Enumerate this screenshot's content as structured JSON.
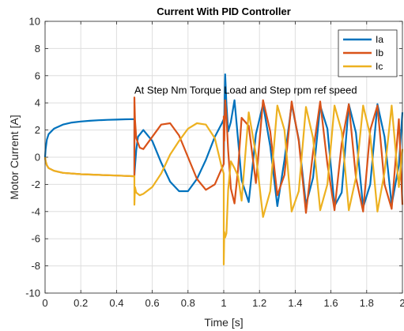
{
  "chart_data": {
    "type": "line",
    "title": "Current With PID Controller",
    "xlabel": "Time [s]",
    "ylabel": "Motor Current [A]",
    "xlim": [
      0,
      2
    ],
    "ylim": [
      -10,
      10
    ],
    "xticks": [
      0,
      0.2,
      0.4,
      0.6,
      0.8,
      1,
      1.2,
      1.4,
      1.6,
      1.8,
      2
    ],
    "xtick_labels": [
      "0",
      "0.2",
      "0.4",
      "0.6",
      "0.8",
      "1",
      "1.2",
      "1.4",
      "1.6",
      "1.8",
      "2"
    ],
    "yticks": [
      -10,
      -8,
      -6,
      -4,
      -2,
      0,
      2,
      4,
      6,
      8,
      10
    ],
    "ytick_labels": [
      "-10",
      "-8",
      "-6",
      "-4",
      "-2",
      "0",
      "2",
      "4",
      "6",
      "8",
      "10"
    ],
    "grid": true,
    "legend_position": "top-right",
    "annotations": [
      {
        "text": "At  Step  Nm Torque Load and Step rpm ref speed",
        "x": 1.0,
        "y": 4.9
      }
    ],
    "series": [
      {
        "name": "Ia",
        "color": "#0072BD",
        "x": [
          0,
          0.003,
          0.01,
          0.02,
          0.05,
          0.1,
          0.15,
          0.2,
          0.25,
          0.3,
          0.35,
          0.4,
          0.45,
          0.5,
          0.5,
          0.505,
          0.51,
          0.52,
          0.55,
          0.6,
          0.65,
          0.7,
          0.75,
          0.8,
          0.85,
          0.9,
          0.95,
          0.99,
          1.0,
          1.0,
          1.003,
          1.008,
          1.015,
          1.025,
          1.04,
          1.06,
          1.08,
          1.1,
          1.14,
          1.18,
          1.22,
          1.26,
          1.3,
          1.34,
          1.38,
          1.42,
          1.46,
          1.5,
          1.54,
          1.58,
          1.62,
          1.66,
          1.7,
          1.74,
          1.78,
          1.82,
          1.86,
          1.9,
          1.94,
          1.98,
          2.0
        ],
        "y": [
          0,
          0.6,
          1.3,
          1.7,
          2.1,
          2.4,
          2.55,
          2.63,
          2.68,
          2.72,
          2.75,
          2.77,
          2.79,
          2.8,
          -1.3,
          -0.4,
          0.5,
          1.5,
          2.0,
          1.2,
          -0.4,
          -1.8,
          -2.5,
          -2.5,
          -1.6,
          -0.2,
          1.5,
          2.5,
          2.8,
          -0.5,
          3.0,
          6.1,
          3.9,
          1.9,
          2.6,
          4.2,
          1.3,
          -1.7,
          -3.3,
          1.7,
          3.9,
          0.8,
          -3.6,
          -0.2,
          3.9,
          1.3,
          -3.5,
          -1.5,
          3.8,
          2.1,
          -3.6,
          -2.6,
          3.9,
          1.8,
          -3.7,
          -2.0,
          3.9,
          1.5,
          -3.5,
          -0.6,
          3.3
        ]
      },
      {
        "name": "Ib",
        "color": "#D95319",
        "x": [
          0,
          0.003,
          0.01,
          0.02,
          0.05,
          0.1,
          0.2,
          0.3,
          0.4,
          0.5,
          0.5,
          0.503,
          0.51,
          0.53,
          0.55,
          0.6,
          0.65,
          0.7,
          0.75,
          0.8,
          0.85,
          0.9,
          0.95,
          0.99,
          1.0,
          1.0,
          1.003,
          1.008,
          1.015,
          1.025,
          1.04,
          1.06,
          1.08,
          1.1,
          1.14,
          1.18,
          1.22,
          1.26,
          1.3,
          1.34,
          1.38,
          1.42,
          1.46,
          1.5,
          1.54,
          1.58,
          1.62,
          1.66,
          1.7,
          1.74,
          1.78,
          1.82,
          1.86,
          1.9,
          1.94,
          1.98,
          2.0
        ],
        "y": [
          0,
          -0.3,
          -0.6,
          -0.8,
          -1.0,
          -1.15,
          -1.25,
          -1.3,
          -1.35,
          -1.4,
          4.4,
          2.8,
          1.4,
          0.7,
          0.6,
          1.5,
          2.4,
          2.5,
          1.6,
          0.0,
          -1.6,
          -2.4,
          -2.0,
          -0.8,
          -0.5,
          3.0,
          1.2,
          4.2,
          3.0,
          0.5,
          -2.3,
          -3.4,
          -0.9,
          2.9,
          2.3,
          -1.9,
          4.2,
          1.9,
          -2.8,
          -1.3,
          4.1,
          1.2,
          -4.1,
          0.4,
          4.1,
          -0.5,
          -3.9,
          1.0,
          3.9,
          -1.5,
          -4.0,
          2.0,
          3.8,
          -2.0,
          -3.8,
          2.8,
          -3.5
        ]
      },
      {
        "name": "Ic",
        "color": "#EDB120",
        "x": [
          0,
          0.003,
          0.01,
          0.02,
          0.05,
          0.1,
          0.2,
          0.3,
          0.4,
          0.5,
          0.5,
          0.503,
          0.51,
          0.53,
          0.55,
          0.6,
          0.65,
          0.7,
          0.75,
          0.8,
          0.85,
          0.9,
          0.95,
          0.99,
          1.0,
          1.0,
          1.003,
          1.008,
          1.015,
          1.025,
          1.04,
          1.06,
          1.08,
          1.1,
          1.14,
          1.18,
          1.22,
          1.26,
          1.3,
          1.34,
          1.38,
          1.42,
          1.46,
          1.5,
          1.54,
          1.58,
          1.62,
          1.66,
          1.7,
          1.74,
          1.78,
          1.82,
          1.86,
          1.9,
          1.94,
          1.98,
          2.0
        ],
        "y": [
          0,
          -0.3,
          -0.6,
          -0.8,
          -1.0,
          -1.15,
          -1.25,
          -1.3,
          -1.35,
          -1.4,
          -3.5,
          -2.2,
          -2.6,
          -2.8,
          -2.7,
          -2.2,
          -1.2,
          0.2,
          1.2,
          2.1,
          2.5,
          2.4,
          1.4,
          -0.8,
          -1.2,
          -7.9,
          -5.5,
          -5.9,
          -5.6,
          -2.4,
          -0.3,
          -0.8,
          -1.4,
          -3.2,
          3.3,
          0.2,
          -4.4,
          -2.5,
          3.8,
          2.0,
          -4.0,
          -2.5,
          3.7,
          1.4,
          -3.9,
          -2.0,
          3.8,
          1.9,
          -3.9,
          -1.5,
          3.8,
          1.6,
          -4.0,
          -1.1,
          3.8,
          -2.2,
          0.6
        ]
      }
    ]
  }
}
